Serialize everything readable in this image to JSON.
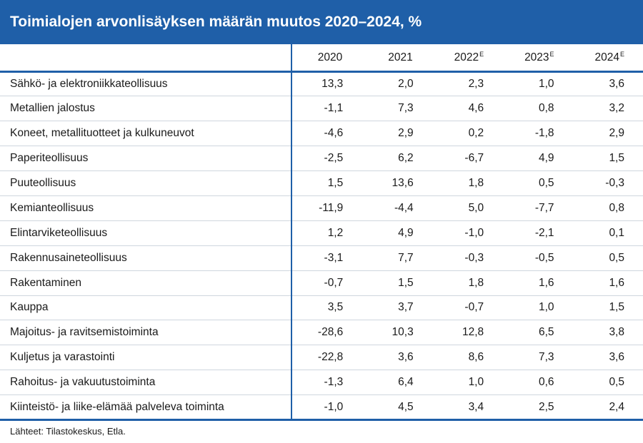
{
  "title": "Toimialojen arvonlisäyksen määrän muutos 2020–2024, %",
  "columns": [
    {
      "year": "2020",
      "mark": ""
    },
    {
      "year": "2021",
      "mark": ""
    },
    {
      "year": "2022",
      "mark": "E"
    },
    {
      "year": "2023",
      "mark": "E"
    },
    {
      "year": "2024",
      "mark": "E"
    }
  ],
  "rows": [
    {
      "label": "Sähkö- ja elektroniikkateollisuus",
      "values": [
        "13,3",
        "2,0",
        "2,3",
        "1,0",
        "3,6"
      ]
    },
    {
      "label": "Metallien jalostus",
      "values": [
        "-1,1",
        "7,3",
        "4,6",
        "0,8",
        "3,2"
      ]
    },
    {
      "label": "Koneet, metallituotteet ja kulkuneuvot",
      "values": [
        "-4,6",
        "2,9",
        "0,2",
        "-1,8",
        "2,9"
      ]
    },
    {
      "label": "Paperiteollisuus",
      "values": [
        "-2,5",
        "6,2",
        "-6,7",
        "4,9",
        "1,5"
      ]
    },
    {
      "label": "Puuteollisuus",
      "values": [
        "1,5",
        "13,6",
        "1,8",
        "0,5",
        "-0,3"
      ]
    },
    {
      "label": "Kemianteollisuus",
      "values": [
        "-11,9",
        "-4,4",
        "5,0",
        "-7,7",
        "0,8"
      ]
    },
    {
      "label": "Elintarviketeollisuus",
      "values": [
        "1,2",
        "4,9",
        "-1,0",
        "-2,1",
        "0,1"
      ]
    },
    {
      "label": "Rakennusaineteollisuus",
      "values": [
        "-3,1",
        "7,7",
        "-0,3",
        "-0,5",
        "0,5"
      ]
    },
    {
      "label": "Rakentaminen",
      "values": [
        "-0,7",
        "1,5",
        "1,8",
        "1,6",
        "1,6"
      ]
    },
    {
      "label": "Kauppa",
      "values": [
        "3,5",
        "3,7",
        "-0,7",
        "1,0",
        "1,5"
      ]
    },
    {
      "label": "Majoitus- ja ravitsemistoiminta",
      "values": [
        "-28,6",
        "10,3",
        "12,8",
        "6,5",
        "3,8"
      ]
    },
    {
      "label": "Kuljetus ja varastointi",
      "values": [
        "-22,8",
        "3,6",
        "8,6",
        "7,3",
        "3,6"
      ]
    },
    {
      "label": "Rahoitus- ja vakuutustoiminta",
      "values": [
        "-1,3",
        "6,4",
        "1,0",
        "0,6",
        "0,5"
      ]
    },
    {
      "label": "Kiinteistö- ja liike-elämää palveleva toiminta",
      "values": [
        "-1,0",
        "4,5",
        "3,4",
        "2,5",
        "2,4"
      ]
    }
  ],
  "source": "Lähteet: Tilastokeskus, Etla.",
  "colors": {
    "accent": "#1f5fa8",
    "row_divider": "#cfd6de"
  }
}
